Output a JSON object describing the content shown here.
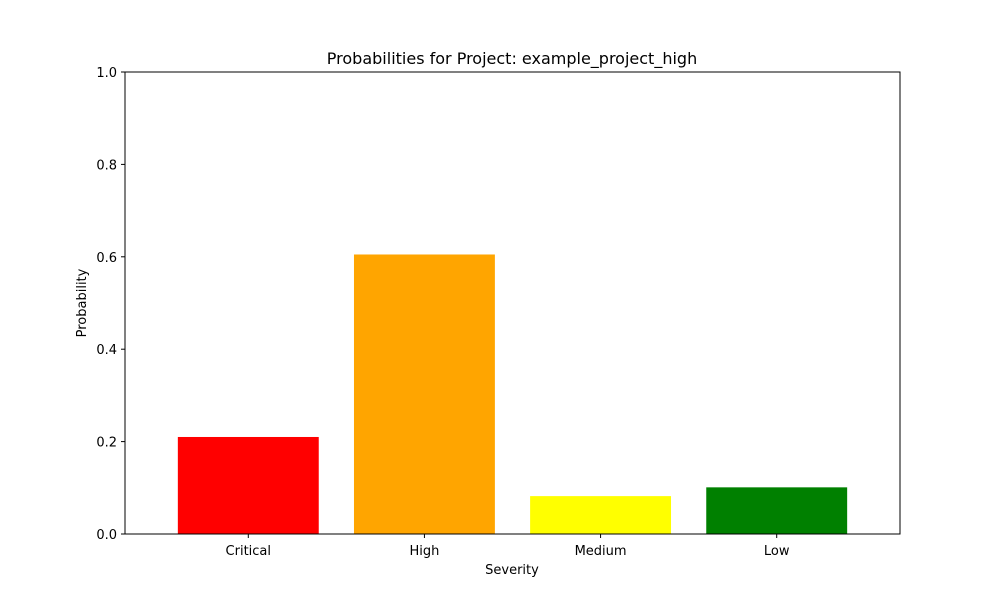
{
  "chart_data": {
    "type": "bar",
    "title": "Probabilities for Project: example_project_high",
    "xlabel": "Severity",
    "ylabel": "Probability",
    "categories": [
      "Critical",
      "High",
      "Medium",
      "Low"
    ],
    "values": [
      0.21,
      0.605,
      0.082,
      0.101
    ],
    "colors": [
      "#ff0000",
      "#ffa500",
      "#ffff00",
      "#008000"
    ],
    "ylim": [
      0,
      1.0
    ],
    "yticks": [
      "0.0",
      "0.2",
      "0.4",
      "0.6",
      "0.8",
      "1.0"
    ],
    "grid": false,
    "legend": "none"
  }
}
